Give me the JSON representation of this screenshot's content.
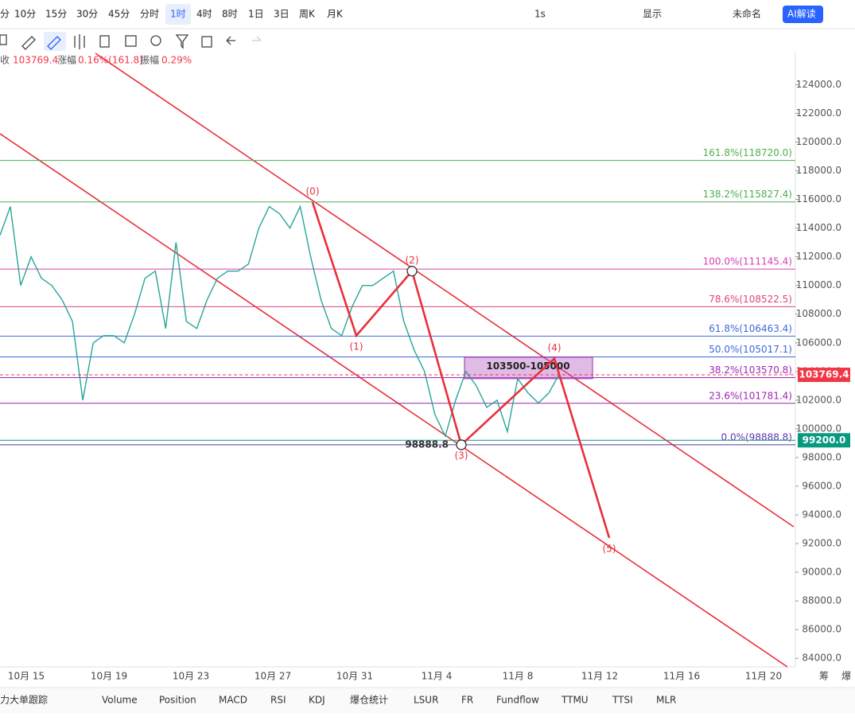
{
  "toolbar": {
    "intervals": [
      "分",
      "10分",
      "15分",
      "30分",
      "45分",
      "分时",
      "1时",
      "4时",
      "8时",
      "1日",
      "3日",
      "周K",
      "月K"
    ],
    "active_interval": 6,
    "right": [
      "1s",
      "显示",
      "未命名",
      "AI解读"
    ]
  },
  "info": {
    "close_label": "收",
    "close": "103769.4",
    "change_label": "涨幅",
    "change": "0.16%(161.8)",
    "amp_label": "振幅",
    "amp": "0.29%"
  },
  "chart_data": {
    "type": "line",
    "color": "#26a69a",
    "values": [
      113500,
      115500,
      110000,
      112000,
      110500,
      110000,
      109000,
      107500,
      102000,
      106000,
      106500,
      106500,
      106000,
      108000,
      110500,
      111000,
      107000,
      113000,
      107500,
      107000,
      109000,
      110500,
      111000,
      111000,
      111500,
      114000,
      115500,
      115000,
      114000,
      115500,
      112000,
      109000,
      107000,
      106500,
      108500,
      110000,
      110000,
      110500,
      111000,
      107500,
      105500,
      104000,
      101000,
      99500,
      102000,
      104000,
      103000,
      101500,
      102000,
      99800,
      103500,
      102500,
      101800,
      102500,
      103800
    ],
    "x_labels": [
      "10月 15",
      "10月 19",
      "10月 23",
      "10月 27",
      "10月 31",
      "11月 4",
      "11月 8",
      "11月 12",
      "11月 16",
      "11月 20"
    ],
    "ylim": [
      83400,
      126300
    ],
    "yticks": [
      {
        "value": 124000,
        "label": "124000.0"
      },
      {
        "value": 122000,
        "label": "122000.0"
      },
      {
        "value": 120000,
        "label": "120000.0"
      },
      {
        "value": 118000,
        "label": "118000.0"
      },
      {
        "value": 116000,
        "label": "116000.0"
      },
      {
        "value": 114000,
        "label": "114000.0"
      },
      {
        "value": 112000,
        "label": "112000.0"
      },
      {
        "value": 110000,
        "label": "110000.0"
      },
      {
        "value": 108000,
        "label": "108000.0"
      },
      {
        "value": 106000,
        "label": "106000.0"
      },
      {
        "value": 104000,
        "label": "104000.0"
      },
      {
        "value": 102000,
        "label": "102000.0"
      },
      {
        "value": 100000,
        "label": "100000.0"
      },
      {
        "value": 98000,
        "label": "98000.0"
      },
      {
        "value": 96000,
        "label": "96000.0"
      },
      {
        "value": 94000,
        "label": "94000.0"
      },
      {
        "value": 92000,
        "label": "92000.0"
      },
      {
        "value": 90000,
        "label": "90000.0"
      },
      {
        "value": 88000,
        "label": "88000.0"
      },
      {
        "value": 86000,
        "label": "86000.0"
      },
      {
        "value": 84000,
        "label": "84000.0"
      }
    ],
    "fib_levels": [
      {
        "label": "161.8%(118720.0)",
        "price": 118720,
        "color": "#4caf50"
      },
      {
        "label": "138.2%(115827.4)",
        "price": 115827.4,
        "color": "#4caf50"
      },
      {
        "label": "100.0%(111145.4)",
        "price": 111145.4,
        "color": "#d63fb5"
      },
      {
        "label": "78.6%(108522.5)",
        "price": 108522.5,
        "color": "#e0457b"
      },
      {
        "label": "61.8%(106463.4)",
        "price": 106463.4,
        "color": "#3d6ad6"
      },
      {
        "label": "50.0%(105017.1)",
        "price": 105017.1,
        "color": "#3d6ad6"
      },
      {
        "label": "38.2%(103570.8)",
        "price": 103570.8,
        "color": "#9c27b0"
      },
      {
        "label": "23.6%(101781.4)",
        "price": 101781.4,
        "color": "#9c27b0"
      },
      {
        "label": "0.0%(98888.8)",
        "price": 98888.8,
        "color": "#5e35b1"
      }
    ],
    "price_tags": [
      {
        "label": "103769.4",
        "value": 103769.4,
        "color": "#f23645"
      },
      {
        "label": "99200.0",
        "value": 99200,
        "color": "#089981"
      }
    ],
    "zone": {
      "label": "103500-105000",
      "low": 103500,
      "high": 105000
    },
    "waves": [
      {
        "label": "(0)",
        "value": 115800
      },
      {
        "label": "(1)",
        "value": 106500
      },
      {
        "label": "(2)",
        "value": 111000
      },
      {
        "label": "(3)",
        "value": 98888.8
      },
      {
        "label": "(4)",
        "value": 104900
      },
      {
        "label": "(5)",
        "value": 92400
      }
    ],
    "side_labels": [
      "筹",
      "爆"
    ]
  },
  "tabs": [
    "力大单跟踪",
    "Volume",
    "Position",
    "MACD",
    "RSI",
    "KDJ",
    "爆仓统计",
    "LSUR",
    "FR",
    "Fundflow",
    "TTMU",
    "TTSI",
    "MLR"
  ]
}
